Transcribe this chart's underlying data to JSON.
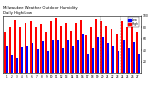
{
  "title": "Milwaukee Weather Outdoor Humidity",
  "subtitle": "Daily High/Low",
  "high_color": "#ff0000",
  "low_color": "#0000ff",
  "background_color": "#ffffff",
  "ylim": [
    0,
    100
  ],
  "ylabel_ticks": [
    20,
    40,
    60,
    80,
    100
  ],
  "days": [
    1,
    2,
    3,
    4,
    5,
    6,
    7,
    8,
    9,
    10,
    11,
    12,
    13,
    14,
    15,
    16,
    17,
    18,
    19,
    20,
    21,
    22,
    23,
    24,
    25,
    26,
    27
  ],
  "highs": [
    72,
    80,
    92,
    80,
    88,
    90,
    80,
    85,
    72,
    90,
    96,
    82,
    87,
    74,
    88,
    93,
    67,
    80,
    94,
    90,
    82,
    77,
    68,
    90,
    80,
    84,
    72
  ],
  "lows": [
    48,
    32,
    27,
    46,
    47,
    52,
    42,
    56,
    38,
    58,
    58,
    44,
    58,
    48,
    58,
    68,
    33,
    44,
    63,
    63,
    53,
    48,
    38,
    58,
    44,
    54,
    33
  ],
  "dashed_lines": [
    18.5,
    22.5
  ],
  "bar_width": 0.38,
  "legend_high": "High",
  "legend_low": "Low"
}
